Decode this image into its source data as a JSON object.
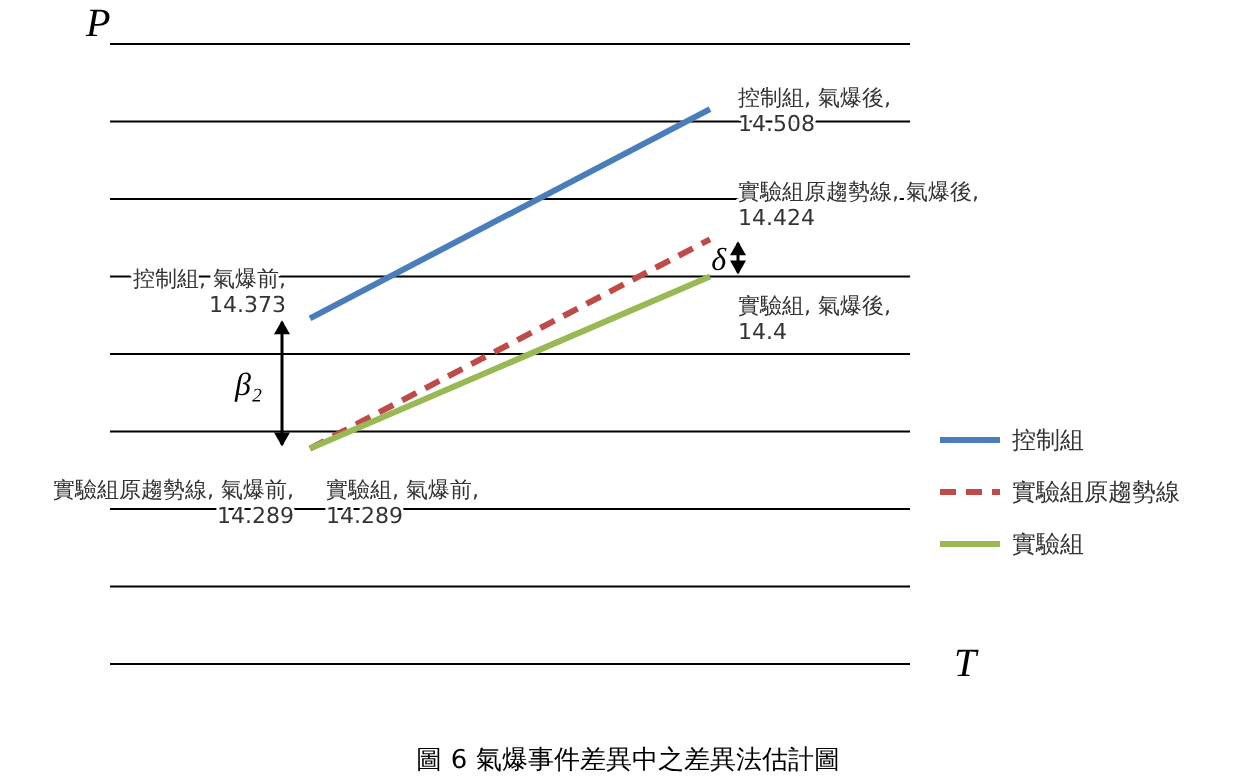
{
  "chart_data": {
    "type": "line",
    "ylabel": "P",
    "xlabel": "T",
    "categories": [
      null,
      null
    ],
    "ylim": [
      14.15,
      14.55
    ],
    "yticks": [
      {
        "value": 14.15,
        "label": null
      },
      {
        "value": 14.2,
        "label": null
      },
      {
        "value": 14.25,
        "label": null
      },
      {
        "value": 14.3,
        "label": null
      },
      {
        "value": 14.35,
        "label": null
      },
      {
        "value": 14.4,
        "label": null
      },
      {
        "value": 14.45,
        "label": null
      },
      {
        "value": 14.5,
        "label": null
      },
      {
        "value": 14.55,
        "label": null
      }
    ],
    "grid": "y",
    "legend": "right",
    "marker": "none",
    "series": [
      {
        "name": "控制組",
        "color": "#4a7ebb",
        "values": [
          14.373,
          14.508
        ],
        "value_labels": [
          "控制組, 氣爆前, 14.373",
          "控制組, 氣爆後, 14.508"
        ]
      },
      {
        "name": "實驗組原趨勢線",
        "color": "#be4b48",
        "line_style": "dashed",
        "values": [
          14.289,
          14.424
        ],
        "value_labels": [
          "實驗組原趨勢線, 氣爆前, 14.289",
          "實驗組原趨勢線, 氣爆後, 14.424"
        ]
      },
      {
        "name": "實驗組",
        "color": "#98b954",
        "values": [
          14.289,
          14.4
        ],
        "value_labels": [
          "實驗組, 氣爆前, 14.289",
          "實驗組, 氣爆後, 14.4"
        ]
      }
    ],
    "annotations": [
      "β₂",
      "δ",
      "圖 6 氣爆事件差異中之差異法估計圖"
    ]
  }
}
